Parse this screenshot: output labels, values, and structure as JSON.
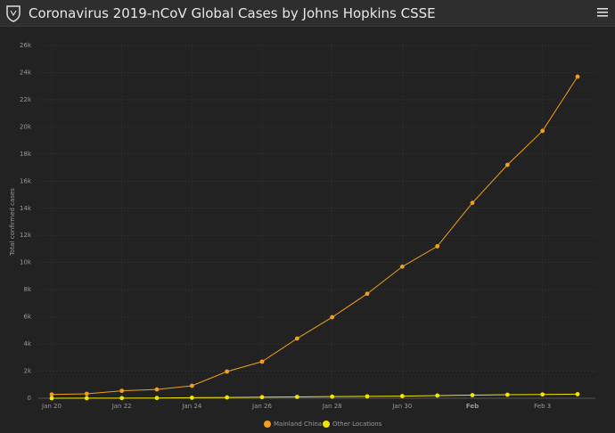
{
  "header": {
    "title": "Coronavirus 2019-nCoV Global Cases by Johns Hopkins CSSE"
  },
  "chart_data": {
    "type": "line",
    "y_label": "Total confirmed cases",
    "x": [
      "Jan 20",
      "Jan 21",
      "Jan 22",
      "Jan 23",
      "Jan 24",
      "Jan 25",
      "Jan 26",
      "Jan 27",
      "Jan 28",
      "Jan 29",
      "Jan 30",
      "Jan 31",
      "Feb 1",
      "Feb 2",
      "Feb 3",
      "Feb 4"
    ],
    "xlim": [
      "Jan 20",
      "Feb 4"
    ],
    "xticks": [
      "Jan 20",
      "Jan 22",
      "Jan 24",
      "Jan 26",
      "Jan 28",
      "Jan 30",
      {
        "value": "Feb 1",
        "label": "Feb"
      },
      "Feb 3"
    ],
    "ylim": [
      0,
      26000
    ],
    "yticks": [
      0,
      {
        "value": 2000,
        "label": "2k"
      },
      {
        "value": 4000,
        "label": "4k"
      },
      {
        "value": 6000,
        "label": "6k"
      },
      {
        "value": 8000,
        "label": "8k"
      },
      {
        "value": 10000,
        "label": "10k"
      },
      {
        "value": 12000,
        "label": "12k"
      },
      {
        "value": 14000,
        "label": "14k"
      },
      {
        "value": 16000,
        "label": "16k"
      },
      {
        "value": 18000,
        "label": "18k"
      },
      {
        "value": 20000,
        "label": "20k"
      },
      {
        "value": 22000,
        "label": "22k"
      },
      {
        "value": 24000,
        "label": "24k"
      },
      {
        "value": 26000,
        "label": "26k"
      }
    ],
    "grid": true,
    "legend": "bottom",
    "series": [
      {
        "name": "Mainland China",
        "color": "#f0a01c",
        "values": [
          280,
          330,
          550,
          650,
          920,
          1970,
          2700,
          4400,
          5970,
          7700,
          9700,
          11200,
          14400,
          17200,
          19700,
          23700
        ]
      },
      {
        "name": "Other Locations",
        "color": "#f2e600",
        "values": [
          0,
          5,
          10,
          20,
          40,
          60,
          80,
          100,
          120,
          140,
          160,
          200,
          230,
          260,
          280,
          300
        ]
      }
    ]
  }
}
